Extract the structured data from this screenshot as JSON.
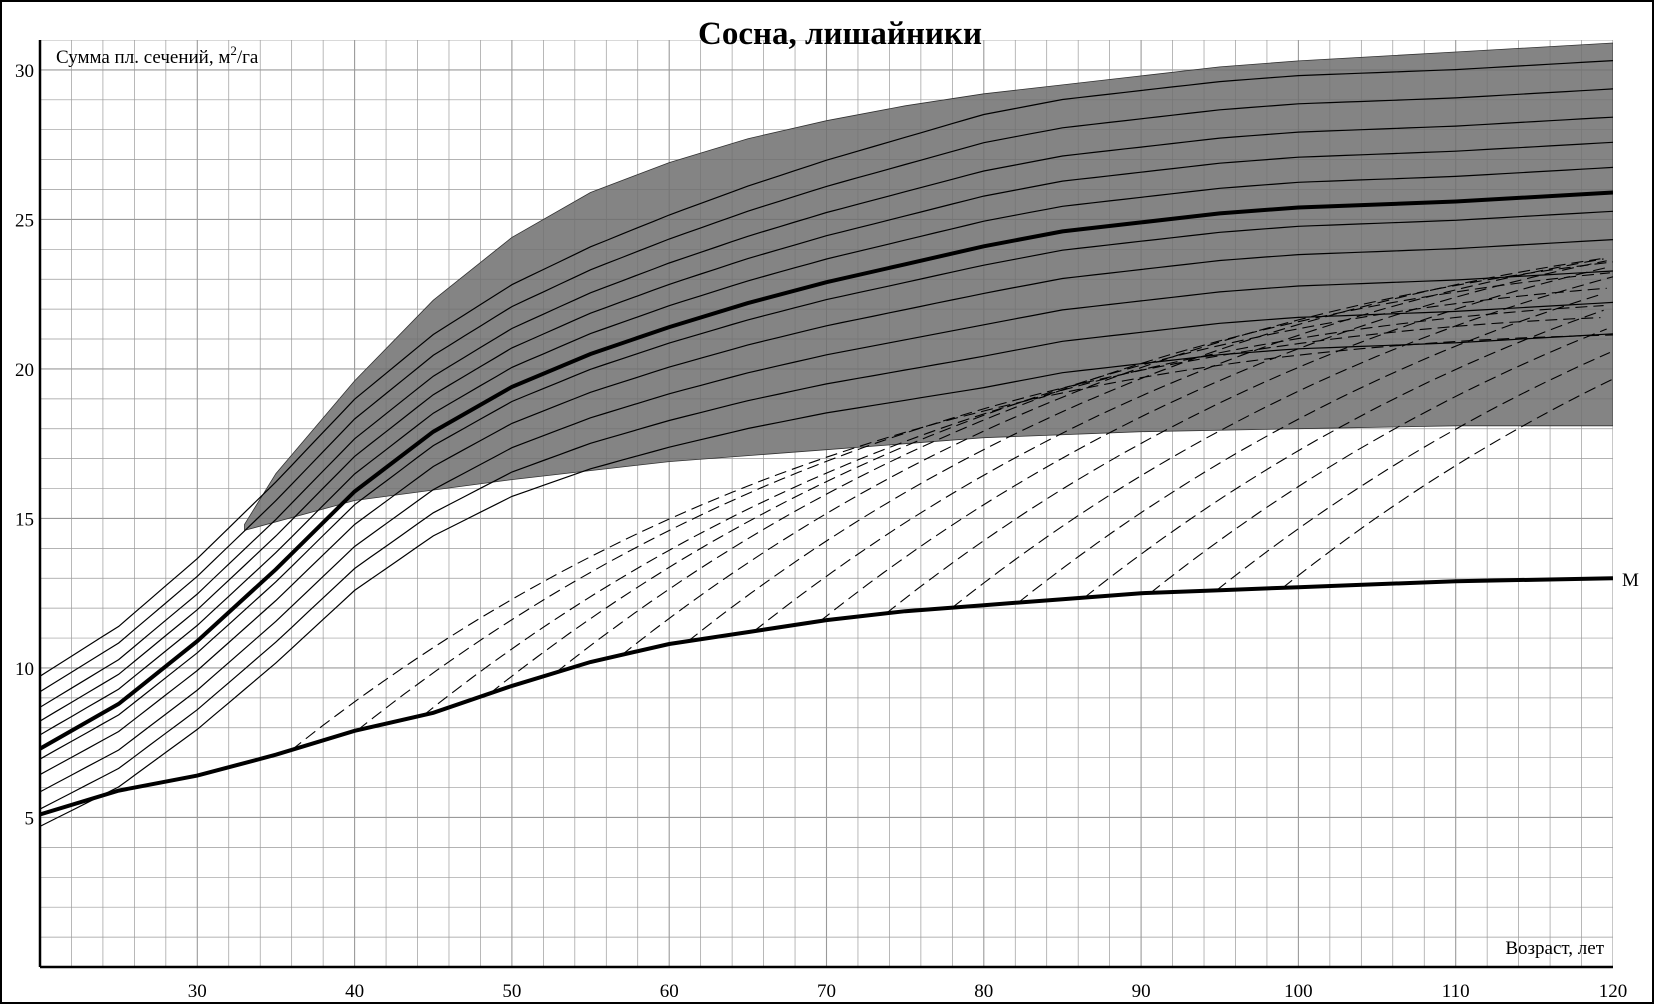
{
  "chart_data": {
    "type": "line",
    "title": "Сосна, лишайники",
    "xlabel": "Возраст, лет",
    "ylabel_main": "Сумма пл. сечений, м",
    "ylabel_sup": "2",
    "ylabel_tail": "/га",
    "xlim": [
      20,
      120
    ],
    "ylim": [
      0,
      31
    ],
    "x_ticks": [
      30,
      40,
      50,
      60,
      70,
      80,
      90,
      100,
      110,
      120
    ],
    "y_ticks": [
      5,
      10,
      15,
      20,
      25,
      30
    ],
    "grid": true,
    "minor_grid_x_step": 2,
    "minor_grid_y_step": 1,
    "colors": {
      "shade": "#6e6e6e",
      "line": "#000000",
      "grid": "#9a9a9a",
      "frame": "#000000"
    },
    "shaded_band": {
      "upper": [
        [
          33,
          14.8
        ],
        [
          35,
          16.5
        ],
        [
          40,
          19.6
        ],
        [
          45,
          22.3
        ],
        [
          50,
          24.4
        ],
        [
          55,
          25.9
        ],
        [
          60,
          26.9
        ],
        [
          65,
          27.7
        ],
        [
          70,
          28.3
        ],
        [
          75,
          28.8
        ],
        [
          80,
          29.2
        ],
        [
          85,
          29.5
        ],
        [
          90,
          29.8
        ],
        [
          95,
          30.1
        ],
        [
          100,
          30.3
        ],
        [
          110,
          30.6
        ],
        [
          120,
          30.9
        ]
      ],
      "lower": [
        [
          33,
          14.6
        ],
        [
          40,
          15.6
        ],
        [
          50,
          16.3
        ],
        [
          60,
          16.9
        ],
        [
          70,
          17.3
        ],
        [
          80,
          17.7
        ],
        [
          90,
          17.9
        ],
        [
          100,
          18.0
        ],
        [
          110,
          18.1
        ],
        [
          120,
          18.1
        ]
      ]
    },
    "thick_curves": [
      {
        "name": "",
        "points": [
          [
            20,
            7.3
          ],
          [
            25,
            8.8
          ],
          [
            30,
            10.9
          ],
          [
            35,
            13.3
          ],
          [
            40,
            15.9
          ],
          [
            45,
            17.9
          ],
          [
            50,
            19.4
          ],
          [
            55,
            20.5
          ],
          [
            60,
            21.4
          ],
          [
            65,
            22.2
          ],
          [
            70,
            22.9
          ],
          [
            75,
            23.5
          ],
          [
            80,
            24.1
          ],
          [
            85,
            24.6
          ],
          [
            90,
            24.9
          ],
          [
            95,
            25.2
          ],
          [
            100,
            25.4
          ],
          [
            110,
            25.6
          ],
          [
            120,
            25.9
          ]
        ]
      },
      {
        "name": "М",
        "points": [
          [
            20,
            5.1
          ],
          [
            25,
            5.9
          ],
          [
            30,
            6.4
          ],
          [
            35,
            7.1
          ],
          [
            40,
            7.9
          ],
          [
            45,
            8.5
          ],
          [
            50,
            9.4
          ],
          [
            55,
            10.2
          ],
          [
            60,
            10.8
          ],
          [
            65,
            11.2
          ],
          [
            70,
            11.6
          ],
          [
            75,
            11.9
          ],
          [
            80,
            12.1
          ],
          [
            85,
            12.3
          ],
          [
            90,
            12.5
          ],
          [
            95,
            12.6
          ],
          [
            100,
            12.7
          ],
          [
            110,
            12.9
          ],
          [
            120,
            13.0
          ]
        ]
      }
    ],
    "thin_curve_offsets": [
      -4.5,
      -3.5,
      -2.5,
      -1.5,
      -0.6,
      0.8,
      1.6,
      2.4,
      3.3,
      4.2
    ],
    "end_label": "М"
  }
}
